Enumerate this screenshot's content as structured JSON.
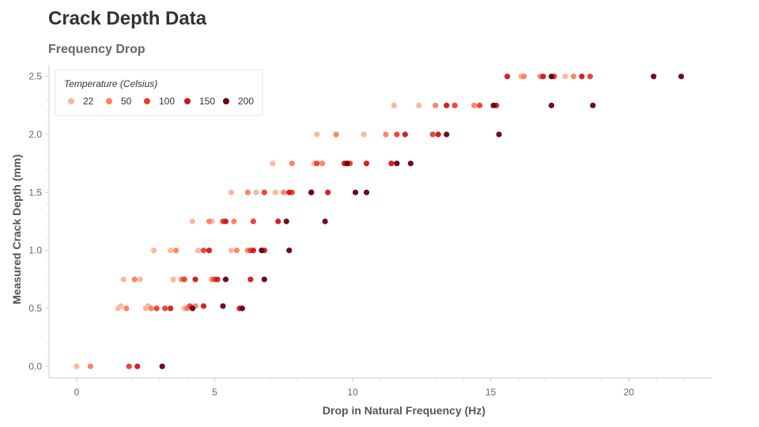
{
  "chart_data": {
    "type": "scatter",
    "title": "Crack Depth Data",
    "subtitle": "Frequency Drop",
    "xlabel": "Drop in Natural Frequency (Hz)",
    "ylabel": "Measured Crack Depth (mm)",
    "xlim": [
      -1,
      23
    ],
    "ylim": [
      -0.1,
      2.6
    ],
    "xticks": [
      0,
      5,
      10,
      15,
      20
    ],
    "yticks": [
      0.0,
      0.5,
      1.0,
      1.5,
      2.0,
      2.5
    ],
    "xtick_labels": [
      "0",
      "5",
      "10",
      "15",
      "20"
    ],
    "ytick_labels": [
      "0.0",
      "0.5",
      "1.0",
      "1.5",
      "2.0",
      "2.5"
    ],
    "grid": false,
    "legend": {
      "title": "Temperature (Celsius)",
      "placement": "top-left",
      "entries": [
        "22",
        "50",
        "100",
        "150",
        "200"
      ]
    },
    "series": [
      {
        "name": "22",
        "color": "#fcb49a",
        "points": [
          [
            0.0,
            0.0
          ],
          [
            1.5,
            0.5
          ],
          [
            1.6,
            0.52
          ],
          [
            1.8,
            0.5
          ],
          [
            2.5,
            0.5
          ],
          [
            2.6,
            0.52
          ],
          [
            3.9,
            0.5
          ],
          [
            2.3,
            0.75
          ],
          [
            3.5,
            0.75
          ],
          [
            1.7,
            0.75
          ],
          [
            2.8,
            1.0
          ],
          [
            3.4,
            1.0
          ],
          [
            4.4,
            1.0
          ],
          [
            5.6,
            1.0
          ],
          [
            4.2,
            1.25
          ],
          [
            4.9,
            1.25
          ],
          [
            5.6,
            1.5
          ],
          [
            6.5,
            1.5
          ],
          [
            7.2,
            1.5
          ],
          [
            7.1,
            1.75
          ],
          [
            8.6,
            1.75
          ],
          [
            8.7,
            2.0
          ],
          [
            10.4,
            2.0
          ],
          [
            11.5,
            2.25
          ],
          [
            12.4,
            2.25
          ],
          [
            16.1,
            2.5
          ],
          [
            17.7,
            2.5
          ]
        ]
      },
      {
        "name": "50",
        "color": "#fb8060",
        "points": [
          [
            0.5,
            0.0
          ],
          [
            1.8,
            0.5
          ],
          [
            2.7,
            0.5
          ],
          [
            4.0,
            0.5
          ],
          [
            4.3,
            0.52
          ],
          [
            2.1,
            0.75
          ],
          [
            3.8,
            0.75
          ],
          [
            4.9,
            0.75
          ],
          [
            3.6,
            1.0
          ],
          [
            5.8,
            1.0
          ],
          [
            6.2,
            1.0
          ],
          [
            4.8,
            1.25
          ],
          [
            5.7,
            1.25
          ],
          [
            6.2,
            1.5
          ],
          [
            7.5,
            1.5
          ],
          [
            7.8,
            1.75
          ],
          [
            8.9,
            1.75
          ],
          [
            9.4,
            2.0
          ],
          [
            11.2,
            2.0
          ],
          [
            13.0,
            2.25
          ],
          [
            14.4,
            2.25
          ],
          [
            16.2,
            2.5
          ],
          [
            16.8,
            2.5
          ],
          [
            18.0,
            2.5
          ]
        ]
      },
      {
        "name": "100",
        "color": "#ef3b2c",
        "points": [
          [
            1.9,
            0.0
          ],
          [
            2.9,
            0.5
          ],
          [
            3.2,
            0.5
          ],
          [
            4.1,
            0.52
          ],
          [
            3.9,
            0.75
          ],
          [
            5.0,
            0.75
          ],
          [
            4.6,
            1.0
          ],
          [
            6.3,
            1.0
          ],
          [
            5.3,
            1.25
          ],
          [
            6.4,
            1.25
          ],
          [
            6.8,
            1.5
          ],
          [
            7.8,
            1.5
          ],
          [
            8.7,
            1.75
          ],
          [
            9.9,
            1.75
          ],
          [
            11.6,
            2.0
          ],
          [
            12.9,
            2.0
          ],
          [
            13.7,
            2.25
          ],
          [
            14.6,
            2.25
          ],
          [
            17.3,
            2.5
          ],
          [
            18.6,
            2.5
          ]
        ]
      },
      {
        "name": "150",
        "color": "#cb181d",
        "points": [
          [
            2.2,
            0.0
          ],
          [
            3.4,
            0.5
          ],
          [
            4.6,
            0.52
          ],
          [
            5.9,
            0.5
          ],
          [
            4.3,
            0.75
          ],
          [
            5.1,
            0.75
          ],
          [
            6.3,
            0.75
          ],
          [
            4.8,
            1.0
          ],
          [
            6.4,
            1.0
          ],
          [
            6.8,
            1.0
          ],
          [
            5.4,
            1.25
          ],
          [
            7.3,
            1.25
          ],
          [
            7.7,
            1.5
          ],
          [
            8.5,
            1.5
          ],
          [
            9.1,
            1.5
          ],
          [
            9.7,
            1.75
          ],
          [
            10.5,
            1.75
          ],
          [
            11.4,
            1.75
          ],
          [
            11.9,
            2.0
          ],
          [
            13.1,
            2.0
          ],
          [
            13.4,
            2.25
          ],
          [
            15.2,
            2.25
          ],
          [
            15.6,
            2.5
          ],
          [
            16.9,
            2.5
          ],
          [
            18.3,
            2.5
          ]
        ]
      },
      {
        "name": "200",
        "color": "#67000d",
        "points": [
          [
            3.1,
            0.0
          ],
          [
            4.2,
            0.5
          ],
          [
            5.3,
            0.52
          ],
          [
            6.0,
            0.5
          ],
          [
            5.4,
            0.75
          ],
          [
            6.8,
            0.75
          ],
          [
            6.7,
            1.0
          ],
          [
            7.7,
            1.0
          ],
          [
            7.6,
            1.25
          ],
          [
            9.0,
            1.25
          ],
          [
            8.5,
            1.5
          ],
          [
            10.1,
            1.5
          ],
          [
            10.5,
            1.5
          ],
          [
            9.8,
            1.75
          ],
          [
            11.6,
            1.75
          ],
          [
            12.1,
            1.75
          ],
          [
            13.4,
            2.0
          ],
          [
            15.3,
            2.0
          ],
          [
            15.1,
            2.25
          ],
          [
            17.2,
            2.25
          ],
          [
            18.7,
            2.25
          ],
          [
            17.2,
            2.5
          ],
          [
            20.9,
            2.5
          ],
          [
            21.9,
            2.5
          ]
        ]
      }
    ]
  }
}
